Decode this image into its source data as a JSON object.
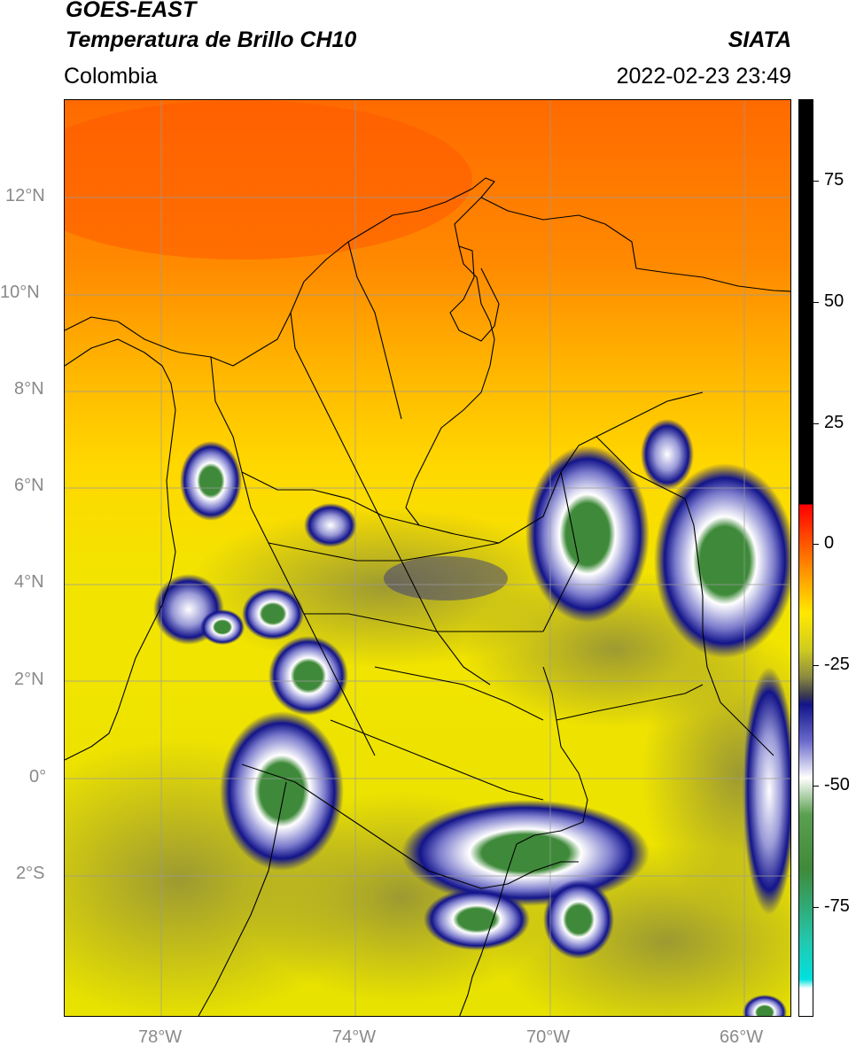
{
  "header": {
    "satellite": "GOES-EAST",
    "product": "Temperatura de Brillo CH10",
    "organization": "SIATA",
    "region": "Colombia",
    "timestamp": "2022-02-23 23:49"
  },
  "map": {
    "lat_labels": [
      "12°N",
      "10°N",
      "8°N",
      "6°N",
      "4°N",
      "2°N",
      "0°",
      "2°S"
    ],
    "lon_labels": [
      "78°W",
      "74°W",
      "70°W",
      "66°W"
    ],
    "colorbar_ticks": [
      "75",
      "50",
      "25",
      "0",
      "-25",
      "-50",
      "-75"
    ],
    "colors": {
      "warm": "#ff5a00",
      "orange": "#ff9a00",
      "yellow": "#ffe800",
      "olive": "#9c9a3a",
      "navy": "#13148a",
      "white": "#ffffff",
      "green": "#3f8a3a",
      "teal": "#22c9b0",
      "black": "#000000",
      "red": "#ff0000"
    }
  }
}
